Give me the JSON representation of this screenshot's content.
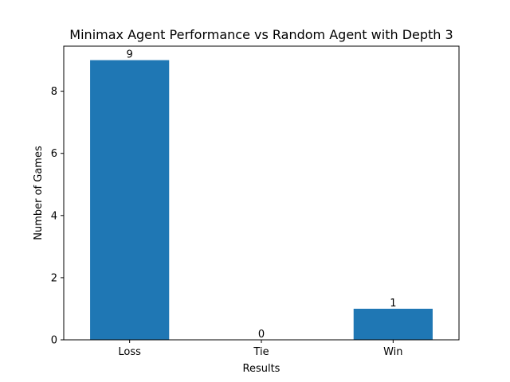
{
  "chart_data": {
    "type": "bar",
    "title": "Minimax Agent Performance vs Random Agent with Depth 3",
    "xlabel": "Results",
    "ylabel": "Number of Games",
    "categories": [
      "Loss",
      "Tie",
      "Win"
    ],
    "values": [
      9,
      0,
      1
    ],
    "data_labels": [
      "9",
      "0",
      "1"
    ],
    "ylim": [
      0,
      9.45
    ],
    "yticks": [
      0,
      2,
      4,
      6,
      8
    ],
    "ytick_labels": [
      "0",
      "2",
      "4",
      "6",
      "8"
    ],
    "grid": false,
    "legend": "none",
    "bar_color": "#1f77b4"
  }
}
